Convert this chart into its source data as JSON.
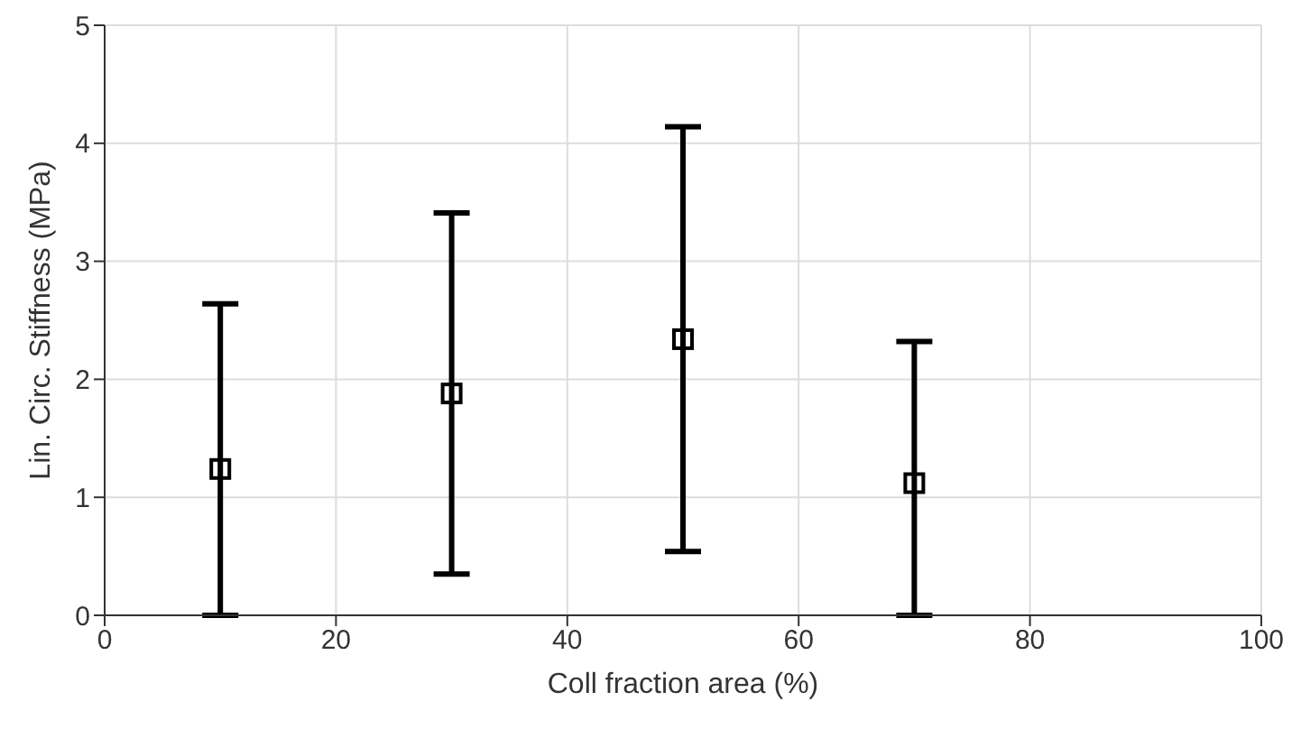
{
  "chart_data": {
    "type": "scatter",
    "xlabel": "Coll fraction area (%)",
    "ylabel": "Lin. Circ. Stiffness (MPa)",
    "x": [
      10,
      30,
      50,
      70
    ],
    "series": [
      {
        "color": "#000000",
        "values": [
          1.24,
          1.88,
          2.34,
          1.12
        ],
        "errors": [
          [
            0,
            2.64
          ],
          1.53,
          1.8,
          [
            0,
            2.32
          ]
        ]
      }
    ],
    "xlim": [
      0,
      100
    ],
    "xticks": [
      0,
      20,
      40,
      60,
      80,
      100
    ],
    "ylim": [
      0,
      5
    ],
    "yticks": [
      0,
      1,
      2,
      3,
      4,
      5
    ],
    "grid": true,
    "marker": "square",
    "legend": false
  }
}
